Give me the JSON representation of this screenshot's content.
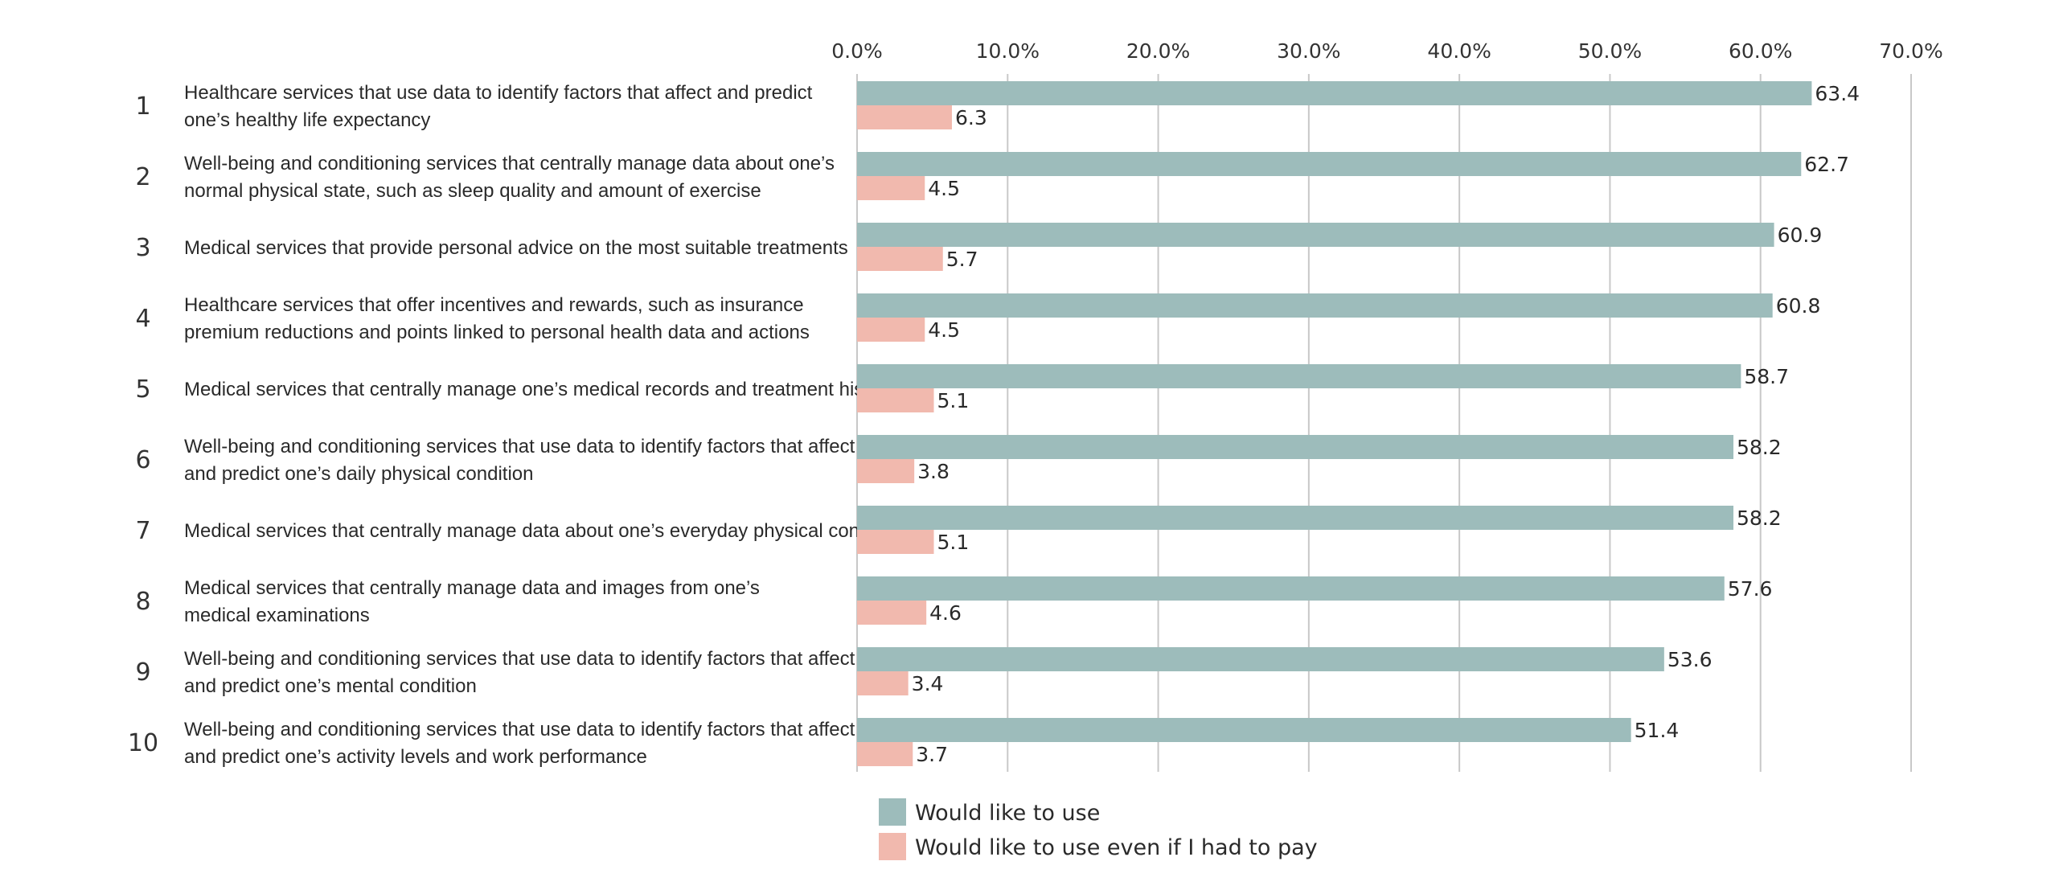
{
  "chart_data": {
    "type": "bar",
    "orientation": "horizontal",
    "xlim": [
      0,
      70
    ],
    "ticks": [
      "0.0%",
      "10.0%",
      "20.0%",
      "30.0%",
      "40.0%",
      "50.0%",
      "60.0%",
      "70.0%"
    ],
    "tick_values": [
      0,
      10,
      20,
      30,
      40,
      50,
      60,
      70
    ],
    "grid": true,
    "legend_position": "bottom",
    "colors": {
      "would_use": "#9dbcbb",
      "would_pay": "#f1b9ae"
    },
    "categories": [
      {
        "rank": "1",
        "lines": [
          "Healthcare services that use data to identify factors that affect and predict",
          "one’s healthy life expectancy"
        ]
      },
      {
        "rank": "2",
        "lines": [
          "Well-being and conditioning services that centrally manage data about one’s",
          "normal physical state, such as sleep quality and amount of exercise"
        ]
      },
      {
        "rank": "3",
        "lines": [
          "Medical services that provide personal advice on the most suitable treatments"
        ]
      },
      {
        "rank": "4",
        "lines": [
          "Healthcare services that offer incentives and rewards, such as insurance",
          "premium reductions and points linked to personal health data and actions"
        ]
      },
      {
        "rank": "5",
        "lines": [
          "Medical services that centrally manage one’s medical records and treatment history"
        ]
      },
      {
        "rank": "6",
        "lines": [
          "Well-being and conditioning services that use data to identify factors that affect",
          "and predict one’s daily physical condition"
        ]
      },
      {
        "rank": "7",
        "lines": [
          "Medical services that centrally manage data about one’s everyday physical condition"
        ]
      },
      {
        "rank": "8",
        "lines": [
          "Medical services that centrally manage data and images from one’s",
          "medical examinations"
        ]
      },
      {
        "rank": "9",
        "lines": [
          "Well-being and conditioning services that use data to identify factors that affect",
          "and predict one’s mental condition"
        ]
      },
      {
        "rank": "10",
        "lines": [
          "Well-being and conditioning services that use data to identify factors that affect",
          "and predict one’s activity levels and work performance"
        ]
      }
    ],
    "series": [
      {
        "name": "Would like to use",
        "key": "would_use",
        "values": [
          63.4,
          62.7,
          60.9,
          60.8,
          58.7,
          58.2,
          58.2,
          57.6,
          53.6,
          51.4
        ],
        "labels": [
          "63.4",
          "62.7",
          "60.9",
          "60.8",
          "58.7",
          "58.2",
          "58.2",
          "57.6",
          "53.6",
          "51.4"
        ]
      },
      {
        "name": "Would like to use even if I had to pay",
        "key": "would_pay",
        "values": [
          6.3,
          4.5,
          5.7,
          4.5,
          5.1,
          3.8,
          5.1,
          4.6,
          3.4,
          3.7
        ],
        "labels": [
          "6.3",
          "4.5",
          "5.7",
          "4.5",
          "5.1",
          "3.8",
          "5.1",
          "4.6",
          "3.4",
          "3.7"
        ]
      }
    ]
  }
}
